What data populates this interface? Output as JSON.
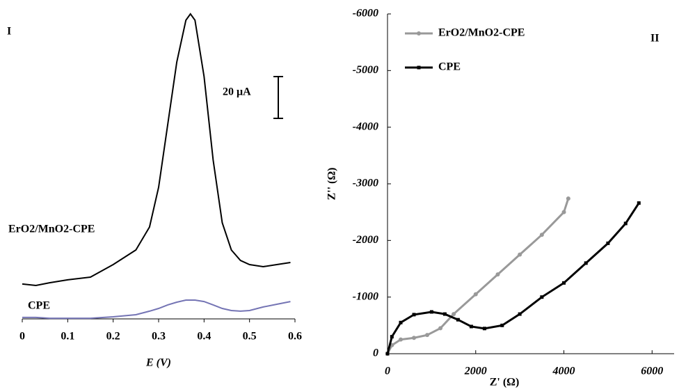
{
  "chart_data": [
    {
      "type": "line",
      "panel_label": "I",
      "x_label": "E (V)",
      "x": [
        0,
        0.03,
        0.06,
        0.1,
        0.15,
        0.2,
        0.25,
        0.28,
        0.3,
        0.32,
        0.34,
        0.36,
        0.37,
        0.38,
        0.4,
        0.42,
        0.44,
        0.46,
        0.48,
        0.5,
        0.53,
        0.56,
        0.59
      ],
      "series": [
        {
          "name": "ErO2/MnO2-CPE",
          "color": "#000000",
          "values": [
            16.7,
            16,
            17.3,
            18.7,
            20,
            26,
            33,
            44,
            63,
            93,
            123,
            143,
            146,
            143,
            116,
            76,
            46,
            33,
            28,
            26,
            25,
            26,
            27
          ]
        },
        {
          "name": "CPE",
          "color": "#7474b4",
          "values": [
            0.7,
            0.7,
            0.3,
            0.3,
            0.3,
            1,
            2,
            3.7,
            5,
            6.7,
            8,
            9,
            9,
            9,
            8.3,
            6.7,
            5,
            4,
            3.7,
            4,
            5.7,
            7,
            8.3
          ]
        }
      ],
      "xlim": [
        0,
        0.6
      ],
      "xticks": [
        0,
        0.1,
        0.2,
        0.3,
        0.4,
        0.5,
        0.6
      ],
      "ylim": [
        0,
        150
      ],
      "scale_bar": {
        "value": 20,
        "label": "20 μA"
      }
    },
    {
      "type": "scatter",
      "panel_label": "II",
      "x_label": "Z' (Ω)",
      "y_label": "Z'' (Ω)",
      "series": [
        {
          "name": "ErO2/MnO2-CPE",
          "color": "#999999",
          "marker": "circle",
          "x": [
            0,
            100,
            300,
            600,
            900,
            1200,
            1500,
            2000,
            2500,
            3000,
            3500,
            4000,
            4100
          ],
          "values": [
            0,
            -150,
            -250,
            -280,
            -330,
            -450,
            -700,
            -1050,
            -1400,
            -1750,
            -2100,
            -2500,
            -2740
          ]
        },
        {
          "name": "CPE",
          "color": "#000000",
          "marker": "square",
          "x": [
            0,
            100,
            300,
            600,
            1000,
            1300,
            1600,
            1900,
            2200,
            2600,
            3000,
            3500,
            4000,
            4500,
            5000,
            5400,
            5700
          ],
          "values": [
            0,
            -300,
            -550,
            -690,
            -738,
            -700,
            -600,
            -480,
            -445,
            -500,
            -700,
            -1000,
            -1250,
            -1600,
            -1950,
            -2300,
            -2660
          ]
        }
      ],
      "xlim": [
        0,
        6500
      ],
      "xticks": [
        0,
        2000,
        4000,
        6000
      ],
      "ylim": [
        0,
        -6000
      ],
      "yticks": [
        0,
        -1000,
        -2000,
        -3000,
        -4000,
        -5000,
        -6000
      ],
      "legend": "upper left"
    }
  ]
}
